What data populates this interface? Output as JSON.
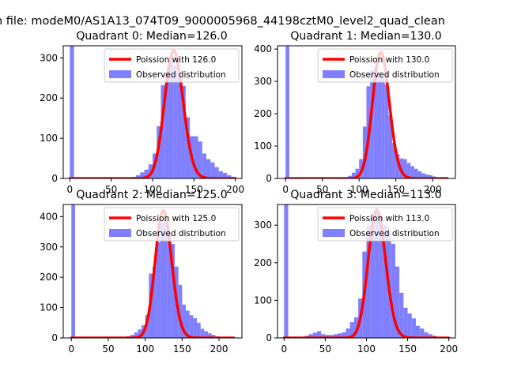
{
  "figure": {
    "suptitle": "n file: modeM0/AS1A13_074T09_9000005968_44198cztM0_level2_quad_clean"
  },
  "colors": {
    "hist_fill": "#7f7fff",
    "poisson_line": "#ff0000",
    "axes": "#000000",
    "background": "#ffffff"
  },
  "chart_data": [
    {
      "type": "bar",
      "title": "Quadrant 0: Median=126.0",
      "xlabel": "",
      "ylabel": "",
      "xlim": [
        -8,
        208
      ],
      "ylim": [
        0,
        330
      ],
      "xticks": [
        0,
        50,
        100,
        150,
        200
      ],
      "yticks": [
        0,
        100,
        200,
        300
      ],
      "grid": false,
      "legend": {
        "location": "upper-right",
        "entries": [
          "Poission with 126.0",
          "Observed distribution"
        ]
      },
      "series": [
        {
          "name": "Observed distribution",
          "kind": "histogram",
          "color": "#7f7fff",
          "bin_width": 5,
          "bin_starts": [
            0,
            75,
            80,
            85,
            90,
            95,
            100,
            105,
            110,
            115,
            120,
            125,
            130,
            135,
            140,
            145,
            150,
            155,
            160,
            165,
            170,
            175,
            180,
            185,
            190,
            195
          ],
          "counts": [
            330,
            4,
            8,
            15,
            22,
            35,
            62,
            130,
            232,
            265,
            298,
            282,
            262,
            230,
            152,
            105,
            105,
            92,
            62,
            48,
            40,
            28,
            18,
            14,
            8,
            4
          ]
        },
        {
          "name": "Poission with 126.0",
          "kind": "poisson_curve",
          "color": "#ff0000",
          "mean": 126.0,
          "x_range": [
            0,
            200
          ],
          "peak": 318
        }
      ]
    },
    {
      "type": "bar",
      "title": "Quadrant 1: Median=130.0",
      "xlabel": "",
      "ylabel": "",
      "xlim": [
        -11,
        231
      ],
      "ylim": [
        0,
        410
      ],
      "xticks": [
        0,
        50,
        100,
        150,
        200
      ],
      "yticks": [
        0,
        100,
        200,
        300,
        400
      ],
      "grid": false,
      "legend": {
        "location": "upper-right",
        "entries": [
          "Poission with 130.0",
          "Observed distribution"
        ]
      },
      "series": [
        {
          "name": "Observed distribution",
          "kind": "histogram",
          "color": "#7f7fff",
          "bin_width": 5,
          "bin_starts": [
            0,
            80,
            85,
            90,
            95,
            100,
            105,
            110,
            115,
            120,
            125,
            130,
            135,
            140,
            145,
            150,
            155,
            160,
            165,
            170,
            175,
            180,
            185,
            190,
            195,
            200
          ],
          "counts": [
            410,
            4,
            8,
            18,
            30,
            60,
            160,
            285,
            335,
            345,
            330,
            312,
            290,
            195,
            110,
            75,
            62,
            60,
            48,
            38,
            30,
            22,
            16,
            12,
            10,
            6
          ]
        },
        {
          "name": "Poission with 130.0",
          "kind": "poisson_curve",
          "color": "#ff0000",
          "mean": 130.0,
          "x_range": [
            0,
            220
          ],
          "peak": 390
        }
      ]
    },
    {
      "type": "bar",
      "title": "Quadrant 2: Median=125.0",
      "xlabel": "",
      "ylabel": "",
      "xlim": [
        -11,
        231
      ],
      "ylim": [
        0,
        440
      ],
      "xticks": [
        0,
        50,
        100,
        150,
        200
      ],
      "yticks": [
        0,
        100,
        200,
        300,
        400
      ],
      "grid": false,
      "legend": {
        "location": "upper-right",
        "entries": [
          "Poission with 125.0",
          "Observed distribution"
        ]
      },
      "series": [
        {
          "name": "Observed distribution",
          "kind": "histogram",
          "color": "#7f7fff",
          "bin_width": 5,
          "bin_starts": [
            0,
            70,
            75,
            80,
            85,
            90,
            95,
            100,
            105,
            110,
            115,
            120,
            125,
            130,
            135,
            140,
            145,
            150,
            155,
            160,
            165,
            170,
            175,
            180,
            185,
            190,
            195
          ],
          "counts": [
            440,
            3,
            6,
            10,
            18,
            28,
            42,
            75,
            212,
            235,
            315,
            380,
            392,
            345,
            310,
            235,
            175,
            110,
            90,
            75,
            65,
            50,
            30,
            22,
            15,
            10,
            5
          ]
        },
        {
          "name": "Poission with 125.0",
          "kind": "poisson_curve",
          "color": "#ff0000",
          "mean": 125.0,
          "x_range": [
            0,
            220
          ],
          "peak": 420
        }
      ]
    },
    {
      "type": "bar",
      "title": "Quadrant 3: Median=113.0",
      "xlabel": "",
      "ylabel": "",
      "xlim": [
        -8,
        208
      ],
      "ylim": [
        0,
        355
      ],
      "xticks": [
        0,
        50,
        100,
        150,
        200
      ],
      "yticks": [
        0,
        100,
        200,
        300
      ],
      "grid": false,
      "legend": {
        "location": "upper-right",
        "entries": [
          "Poission with 113.0",
          "Observed distribution"
        ]
      },
      "series": [
        {
          "name": "Observed distribution",
          "kind": "histogram",
          "color": "#7f7fff",
          "bin_width": 5,
          "bin_starts": [
            0,
            20,
            25,
            30,
            35,
            40,
            45,
            50,
            55,
            60,
            65,
            70,
            75,
            80,
            85,
            90,
            95,
            100,
            105,
            110,
            115,
            120,
            125,
            130,
            135,
            140,
            145,
            150,
            155,
            160,
            165,
            170,
            175,
            180
          ],
          "counts": [
            355,
            3,
            6,
            10,
            14,
            18,
            10,
            8,
            8,
            10,
            12,
            15,
            25,
            42,
            55,
            105,
            230,
            300,
            330,
            335,
            325,
            300,
            285,
            250,
            190,
            120,
            80,
            65,
            52,
            32,
            25,
            15,
            10,
            6
          ]
        },
        {
          "name": "Poission with 113.0",
          "kind": "poisson_curve",
          "color": "#ff0000",
          "mean": 113.0,
          "x_range": [
            0,
            200
          ],
          "peak": 340
        }
      ]
    }
  ]
}
